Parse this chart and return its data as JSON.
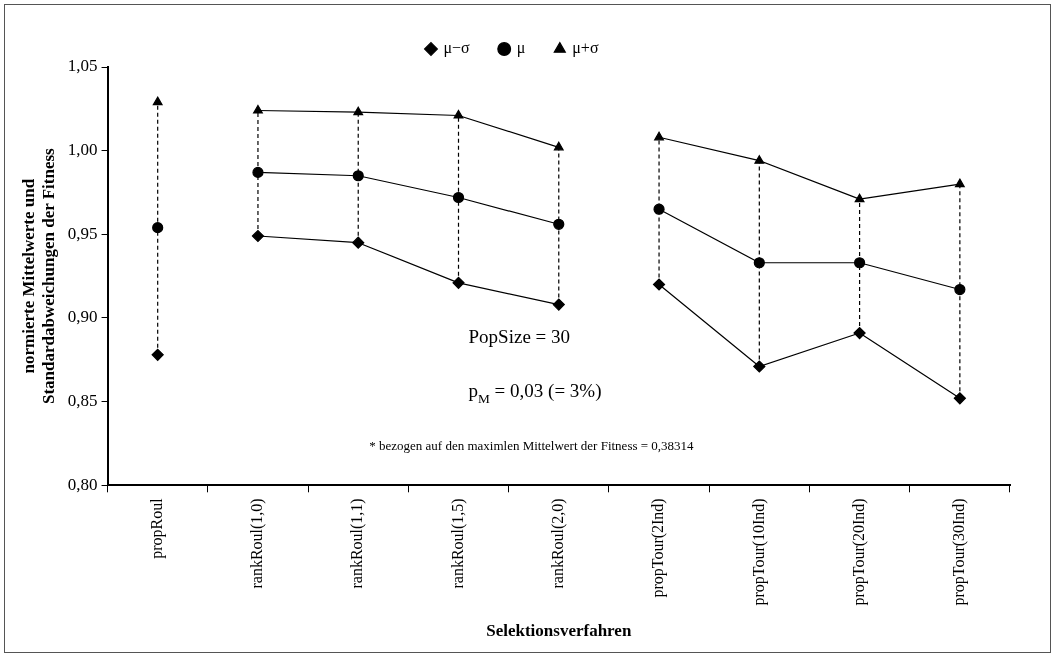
{
  "chart_data": {
    "type": "line",
    "xlabel": "Selektionsverfahren",
    "ylabel": "normierte Mittelwerte und Standardabweichungen der Fitness",
    "categories": [
      "propRoul",
      "rankRoul(1,0)",
      "rankRoul(1,1)",
      "rankRoul(1,5)",
      "rankRoul(2,0)",
      "propTour(2Ind)",
      "propTour(10Ind)",
      "propTour(20Ind)",
      "propTour(30Ind)"
    ],
    "series": [
      {
        "name": "μ−σ",
        "color": "#000000",
        "marker": "diamond",
        "values": [
          null,
          0.949,
          0.945,
          0.921,
          0.908,
          null,
          null,
          null,
          null
        ]
      },
      {
        "name": "μ",
        "color": "#000000",
        "marker": "circle",
        "values": [
          null,
          0.987,
          0.985,
          0.972,
          0.956,
          null,
          null,
          null,
          null
        ],
        "errors": [
          null,
          [
            0.949,
            1.024
          ],
          [
            0.945,
            1.023
          ],
          [
            0.921,
            1.021
          ],
          [
            0.908,
            1.002
          ],
          null,
          null,
          null,
          null
        ]
      },
      {
        "name": "μ+σ",
        "color": "#000000",
        "marker": "triangle",
        "values": [
          null,
          1.024,
          1.023,
          1.021,
          1.002,
          null,
          null,
          null,
          null
        ]
      },
      {
        "color": "#000000",
        "marker": "diamond",
        "values": [
          0.878,
          null,
          null,
          null,
          null,
          null,
          null,
          null,
          null
        ]
      },
      {
        "color": "#000000",
        "marker": "circle",
        "values": [
          0.954,
          null,
          null,
          null,
          null,
          null,
          null,
          null,
          null
        ],
        "errors": [
          [
            0.878,
            1.029
          ],
          null,
          null,
          null,
          null,
          null,
          null,
          null,
          null
        ]
      },
      {
        "color": "#000000",
        "marker": "triangle",
        "values": [
          1.029,
          null,
          null,
          null,
          null,
          null,
          null,
          null,
          null
        ]
      },
      {
        "color": "#000000",
        "marker": "diamond",
        "values": [
          null,
          null,
          null,
          null,
          null,
          0.92,
          0.871,
          0.891,
          0.852
        ]
      },
      {
        "color": "#000000",
        "marker": "circle",
        "values": [
          null,
          null,
          null,
          null,
          null,
          0.965,
          0.933,
          0.933,
          0.917
        ],
        "errors": [
          null,
          null,
          null,
          null,
          null,
          [
            0.92,
            1.008
          ],
          [
            0.871,
            0.994
          ],
          [
            0.891,
            0.971
          ],
          [
            0.852,
            0.98
          ]
        ]
      },
      {
        "color": "#000000",
        "marker": "triangle",
        "values": [
          null,
          null,
          null,
          null,
          null,
          1.008,
          0.994,
          0.971,
          0.98
        ]
      }
    ],
    "ylim": [
      0.8,
      1.05
    ],
    "yticks": [
      {
        "value": 0.8,
        "label": "0,80"
      },
      {
        "value": 0.85,
        "label": "0,85"
      },
      {
        "value": 0.9,
        "label": "0,90"
      },
      {
        "value": 0.95,
        "label": "0,95"
      },
      {
        "value": 1.0,
        "label": "1,00"
      },
      {
        "value": 1.05,
        "label": "1,05"
      }
    ],
    "annotations": [
      "PopSize = 30",
      "p$_{M}$ = 0,03 (= 3%)",
      "* bezogen auf den maximlen Mittelwert der Fitness = 0,38314"
    ],
    "grid": false,
    "legend": "top",
    "line_style": "solid"
  }
}
